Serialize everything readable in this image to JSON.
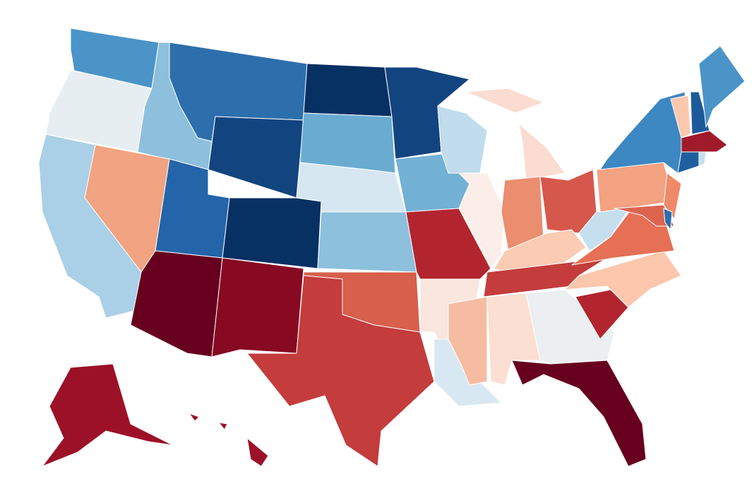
{
  "map": {
    "fills": [
      "#4b94c8",
      "#e6eef2",
      "#a9d0e6",
      "#8ebfdd",
      "#f2a381",
      "#2d6fac",
      "#124580",
      "#2464a8",
      "#67001f",
      "#073063",
      "#870a22",
      "#073063",
      "#6aabd2",
      "#d6e7f1",
      "#8cc0dd",
      "#d75f4c",
      "#c43c3c",
      "#124580",
      "#73b1d5",
      "#b2252f",
      "#f9e6df",
      "#d8e8f2",
      "#c0dced",
      "#fbeee8",
      "#fbdcd0",
      "#fbdcd0",
      "#ea8e6f",
      "#d6574b",
      "#fbcbb3",
      "#c43c3c",
      "#f6bca2",
      "#fbdfd2",
      "#ebeff2",
      "#67001f",
      "#b2252f",
      "#fcc7ac",
      "#e57055",
      "#c5dfee",
      "#f3a282",
      "#3d87c2",
      "#ee8a6a",
      "#dd6550",
      "#2d6fac",
      "#fcc8ae",
      "#1d5a9a",
      "#4b94c8",
      "#a11a2b",
      "#1f5f9f",
      "#c5dfee",
      "#9c1127",
      "#9c1127",
      "#9c1127",
      "#9c1127"
    ]
  }
}
